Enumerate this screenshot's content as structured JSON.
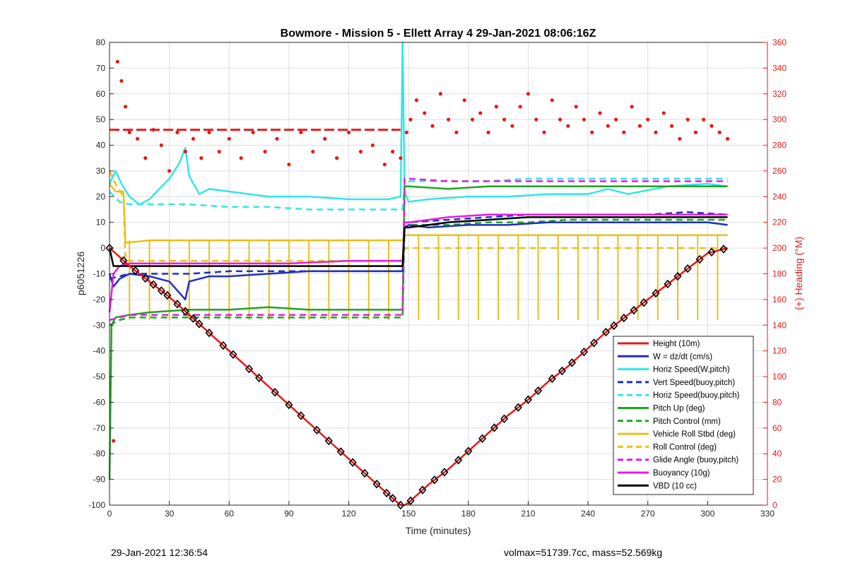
{
  "chart_data": {
    "type": "line",
    "title": "Bowmore - Mission 5 - Ellett Array 4 29-Jan-2021 08:06:16Z",
    "xlabel": "Time (minutes)",
    "ylabel": "p6051226",
    "y2label": "(+) Heading (°M)",
    "xlim": [
      0,
      330
    ],
    "ylim": [
      -100,
      80
    ],
    "y2lim": [
      0,
      360
    ],
    "xticks": [
      0,
      30,
      60,
      90,
      120,
      150,
      180,
      210,
      240,
      270,
      300,
      330
    ],
    "yticks": [
      -100,
      -90,
      -80,
      -70,
      -60,
      -50,
      -40,
      -30,
      -20,
      -10,
      0,
      10,
      20,
      30,
      40,
      50,
      60,
      70,
      80
    ],
    "y2ticks": [
      0,
      20,
      40,
      60,
      80,
      100,
      120,
      140,
      160,
      180,
      200,
      220,
      240,
      260,
      280,
      300,
      320,
      340,
      360
    ],
    "grid": true,
    "legend_position": "bottom-right",
    "colors": {
      "red": "#e31a1a",
      "blue": "#1f2fbf",
      "cyan": "#33e6e6",
      "green": "#1fa51f",
      "yellow": "#e6c21a",
      "magenta": "#e61ae6",
      "black": "#000000"
    },
    "series": [
      {
        "name": "Height (10m)",
        "color": "#e31a1a",
        "style": "solid",
        "x": [
          0,
          3,
          10,
          20,
          30,
          40,
          50,
          60,
          70,
          80,
          90,
          100,
          110,
          120,
          130,
          140,
          146,
          148,
          150,
          160,
          170,
          180,
          190,
          200,
          210,
          220,
          230,
          240,
          250,
          260,
          270,
          280,
          290,
          300,
          310
        ],
        "y": [
          0,
          -2,
          -7,
          -13,
          -19,
          -26,
          -33,
          -40,
          -47,
          -54,
          -61,
          -68,
          -75,
          -82,
          -89,
          -96,
          -100,
          -100,
          -99,
          -92,
          -86,
          -79,
          -72,
          -65,
          -59,
          -52,
          -46,
          -39,
          -32,
          -26,
          -20,
          -14,
          -8,
          -2,
          0
        ]
      },
      {
        "name": "W = dz/dt (cm/s)",
        "color": "#1f2fbf",
        "style": "solid",
        "x": [
          0,
          2,
          5,
          10,
          20,
          30,
          38,
          40,
          50,
          60,
          80,
          100,
          120,
          146,
          147,
          148,
          150,
          160,
          180,
          200,
          220,
          240,
          260,
          280,
          300,
          310
        ],
        "y": [
          -10,
          -15,
          -12,
          -10,
          -11,
          -13,
          -20,
          -13,
          -11,
          -11,
          -10,
          -9,
          -9,
          -9,
          -9,
          8,
          9,
          8,
          9,
          9,
          10,
          10,
          10,
          10,
          10,
          9
        ]
      },
      {
        "name": "Horiz Speed(W,pitch)",
        "color": "#33e6e6",
        "style": "solid",
        "x": [
          0,
          3,
          6,
          10,
          15,
          20,
          25,
          30,
          35,
          38,
          40,
          45,
          50,
          60,
          70,
          80,
          100,
          120,
          140,
          146,
          147,
          148,
          150,
          160,
          180,
          200,
          220,
          240,
          250,
          260,
          280,
          300,
          310
        ],
        "y": [
          25,
          30,
          25,
          20,
          17,
          19,
          23,
          27,
          33,
          39,
          28,
          21,
          23,
          22,
          21,
          20,
          20,
          19,
          19,
          20,
          80,
          22,
          18,
          19,
          20,
          20,
          21,
          21,
          23,
          21,
          24,
          25,
          24
        ]
      },
      {
        "name": "Vert Speed(buoy,pitch)",
        "color": "#1f2fbf",
        "style": "dashed",
        "x": [
          0,
          5,
          10,
          20,
          40,
          60,
          80,
          100,
          120,
          146,
          147,
          148,
          150,
          170,
          190,
          210,
          230,
          250,
          270,
          290,
          310
        ],
        "y": [
          -12,
          -11,
          -10,
          -10,
          -10,
          -9,
          -9,
          -9,
          -9,
          -9,
          -9,
          10,
          10,
          11,
          12,
          13,
          13,
          13,
          13,
          14,
          13
        ]
      },
      {
        "name": "Horiz Speed(buoy,pitch)",
        "color": "#33e6e6",
        "style": "dashed",
        "x": [
          0,
          5,
          10,
          20,
          40,
          60,
          80,
          100,
          120,
          146,
          147,
          148,
          150,
          170,
          190,
          210,
          230,
          250,
          270,
          290,
          310
        ],
        "y": [
          22,
          18,
          17,
          17,
          17,
          16,
          16,
          15,
          15,
          15,
          15,
          25,
          26,
          26,
          26,
          27,
          27,
          27,
          27,
          27,
          27
        ]
      },
      {
        "name": "Pitch Up (deg)",
        "color": "#1fa51f",
        "style": "solid",
        "x": [
          0,
          1,
          3,
          10,
          20,
          40,
          60,
          80,
          100,
          120,
          146,
          147,
          148,
          150,
          170,
          190,
          210,
          230,
          250,
          270,
          290,
          310
        ],
        "y": [
          -90,
          -30,
          -27,
          -26,
          -25,
          -24,
          -24,
          -23,
          -24,
          -24,
          -24,
          -24,
          24,
          24,
          23,
          24,
          24,
          24,
          24,
          24,
          24,
          24
        ]
      },
      {
        "name": "Pitch Control (mm)",
        "color": "#1fa51f",
        "style": "dashed",
        "x": [
          0,
          5,
          10,
          30,
          60,
          90,
          120,
          146,
          147,
          148,
          150,
          170,
          190,
          210,
          230,
          250,
          270,
          290,
          310
        ],
        "y": [
          -30,
          -28,
          -27,
          -27,
          -27,
          -27,
          -27,
          -27,
          -27,
          8,
          9,
          9,
          10,
          10,
          11,
          11,
          11,
          11,
          11
        ]
      },
      {
        "name": "Vehicle Roll Stbd (deg)",
        "color": "#e6c21a",
        "style": "solid",
        "x": [
          0,
          3,
          7,
          8,
          20,
          40,
          60,
          80,
          100,
          120,
          146,
          147,
          148,
          150,
          170,
          190,
          210,
          230,
          250,
          270,
          290,
          310
        ],
        "y": [
          25,
          22,
          22,
          2,
          3,
          3,
          3,
          3,
          3,
          3,
          3,
          3,
          5,
          5,
          5,
          5,
          5,
          5,
          5,
          5,
          5,
          5
        ]
      },
      {
        "name": "Roll Control (deg)",
        "color": "#e6c21a",
        "style": "dashed",
        "x": [
          0,
          3,
          7,
          8,
          20,
          40,
          60,
          80,
          100,
          120,
          146,
          147,
          148,
          150,
          170,
          190,
          210,
          230,
          250,
          270,
          290,
          310
        ],
        "y": [
          30,
          25,
          20,
          -5,
          -5,
          -5,
          -5,
          -5,
          -5,
          -5,
          -5,
          -5,
          0,
          0,
          0,
          0,
          0,
          0,
          0,
          0,
          0,
          0
        ]
      },
      {
        "name": "Glide Angle (buoy,pitch)",
        "color": "#e61ae6",
        "style": "dashed",
        "x": [
          0,
          5,
          10,
          30,
          60,
          90,
          120,
          146,
          147,
          148,
          150,
          170,
          190,
          210,
          230,
          250,
          270,
          290,
          310
        ],
        "y": [
          -28,
          -27,
          -26,
          -26,
          -26,
          -26,
          -26,
          -26,
          -26,
          27,
          27,
          26,
          26,
          26,
          26,
          26,
          26,
          26,
          26
        ]
      },
      {
        "name": "Buoyancy (10g)",
        "color": "#e61ae6",
        "style": "solid",
        "x": [
          0,
          2,
          5,
          10,
          30,
          60,
          90,
          120,
          146,
          147,
          148,
          150,
          160,
          170,
          190,
          210,
          230,
          250,
          270,
          290,
          310
        ],
        "y": [
          -25,
          -10,
          -7,
          -6,
          -6,
          -6,
          -6,
          -5,
          -5,
          -5,
          10,
          10,
          11,
          12,
          13,
          13,
          13,
          13,
          13,
          13,
          13
        ]
      },
      {
        "name": "VBD (10 cc)",
        "color": "#000000",
        "style": "solid",
        "x": [
          0,
          2,
          5,
          10,
          30,
          60,
          90,
          120,
          146,
          147,
          148,
          150,
          160,
          170,
          190,
          210,
          230,
          250,
          270,
          290,
          310
        ],
        "y": [
          0,
          -7,
          -7,
          -7,
          -7,
          -7,
          -7,
          -7,
          -7,
          -7,
          8,
          8,
          9,
          10,
          11,
          12,
          12,
          12,
          12,
          12,
          12
        ]
      }
    ],
    "heading": {
      "axis": "y2",
      "color": "#e31a1a",
      "x": [
        2,
        4,
        6,
        8,
        10,
        14,
        18,
        22,
        26,
        30,
        34,
        38,
        42,
        46,
        50,
        55,
        60,
        66,
        72,
        78,
        84,
        90,
        96,
        102,
        108,
        114,
        120,
        126,
        132,
        138,
        142,
        146,
        149,
        151,
        154,
        158,
        162,
        166,
        170,
        174,
        178,
        182,
        186,
        190,
        194,
        198,
        202,
        206,
        210,
        214,
        218,
        222,
        226,
        230,
        234,
        238,
        242,
        246,
        250,
        254,
        258,
        262,
        266,
        270,
        274,
        278,
        282,
        286,
        290,
        294,
        298,
        302,
        306,
        310
      ],
      "y": [
        50,
        345,
        330,
        310,
        290,
        285,
        270,
        292,
        280,
        260,
        290,
        275,
        285,
        270,
        290,
        275,
        285,
        270,
        290,
        275,
        285,
        265,
        290,
        275,
        285,
        270,
        290,
        275,
        280,
        265,
        275,
        270,
        290,
        300,
        315,
        305,
        295,
        320,
        300,
        290,
        315,
        300,
        305,
        290,
        310,
        300,
        295,
        310,
        320,
        300,
        290,
        315,
        300,
        295,
        310,
        300,
        290,
        305,
        295,
        300,
        290,
        310,
        295,
        300,
        290,
        305,
        295,
        285,
        300,
        290,
        300,
        295,
        290,
        285
      ]
    },
    "heading_ref_level": 292,
    "roll_dip_x": [
      10,
      20,
      30,
      40,
      50,
      60,
      70,
      80,
      90,
      100,
      110,
      120,
      130,
      140,
      155,
      165,
      175,
      185,
      195,
      205,
      215,
      225,
      235,
      245,
      255,
      265,
      275,
      285,
      295,
      305
    ],
    "marker_x": [
      0,
      7,
      13,
      18,
      22,
      26,
      29,
      34,
      38,
      42,
      45,
      50,
      57,
      62,
      70,
      75,
      83,
      90,
      96,
      104,
      110,
      116,
      122,
      128,
      134,
      139,
      142,
      146,
      151,
      157,
      163,
      168,
      175,
      180,
      187,
      193,
      198,
      205,
      210,
      215,
      222,
      227,
      232,
      238,
      243,
      249,
      253,
      258,
      263,
      268,
      274,
      280,
      285,
      290,
      296,
      302,
      308
    ]
  },
  "legend": [
    {
      "label": "Height (10m)",
      "color": "#e31a1a",
      "style": "solid"
    },
    {
      "label": "W = dz/dt (cm/s)",
      "color": "#1f2fbf",
      "style": "solid"
    },
    {
      "label": "Horiz Speed(W,pitch)",
      "color": "#33e6e6",
      "style": "solid"
    },
    {
      "label": "Vert Speed(buoy,pitch)",
      "color": "#1f2fbf",
      "style": "dashed"
    },
    {
      "label": "Horiz Speed(buoy,pitch)",
      "color": "#33e6e6",
      "style": "dashed"
    },
    {
      "label": "Pitch Up (deg)",
      "color": "#1fa51f",
      "style": "solid"
    },
    {
      "label": "Pitch Control (mm)",
      "color": "#1fa51f",
      "style": "dashed"
    },
    {
      "label": "Vehicle Roll Stbd (deg)",
      "color": "#e6c21a",
      "style": "solid"
    },
    {
      "label": "Roll Control (deg)",
      "color": "#e6c21a",
      "style": "dashed"
    },
    {
      "label": "Glide Angle (buoy,pitch)",
      "color": "#e61ae6",
      "style": "dashed"
    },
    {
      "label": "Buoyancy (10g)",
      "color": "#e61ae6",
      "style": "solid"
    },
    {
      "label": "VBD (10 cc)",
      "color": "#000000",
      "style": "solid"
    }
  ],
  "footer": {
    "timestamp": "29-Jan-2021 12:36:54",
    "stats": "volmax=51739.7cc, mass=52.569kg"
  }
}
